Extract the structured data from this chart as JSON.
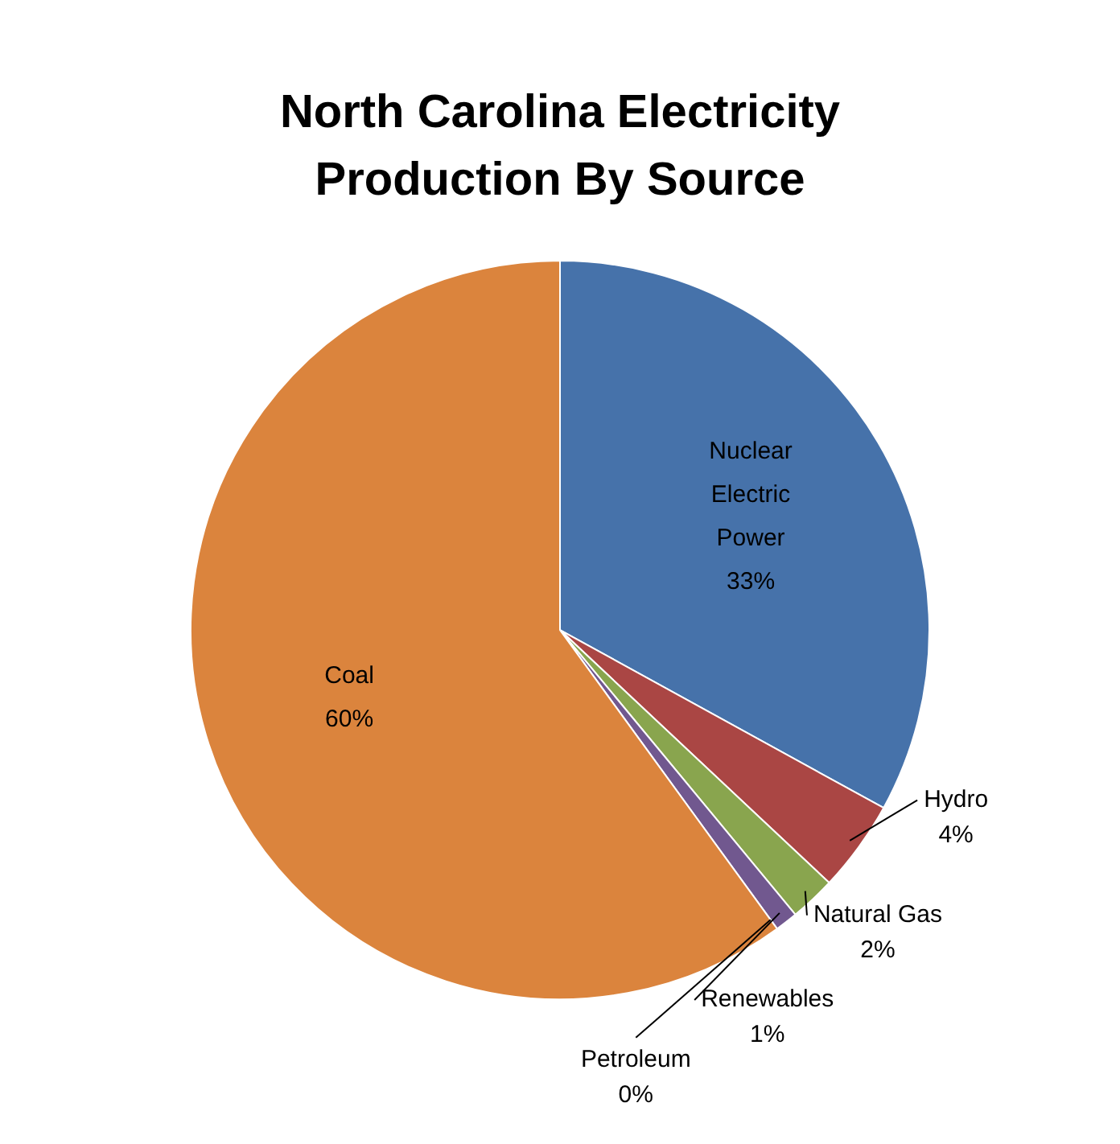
{
  "chart_data": {
    "type": "pie",
    "title": "North Carolina Electricity Production By Source",
    "categories": [
      "Nuclear Electric Power",
      "Hydro",
      "Natural Gas",
      "Renewables",
      "Petroleum",
      "Coal"
    ],
    "values": [
      33,
      4,
      2,
      1,
      0,
      60
    ],
    "value_labels": [
      "33%",
      "4%",
      "2%",
      "1%",
      "0%",
      "60%"
    ],
    "colors": [
      "#4672aa",
      "#aa4644",
      "#89a54e",
      "#71588f",
      "#4198af",
      "#db843d"
    ],
    "legend": false
  }
}
